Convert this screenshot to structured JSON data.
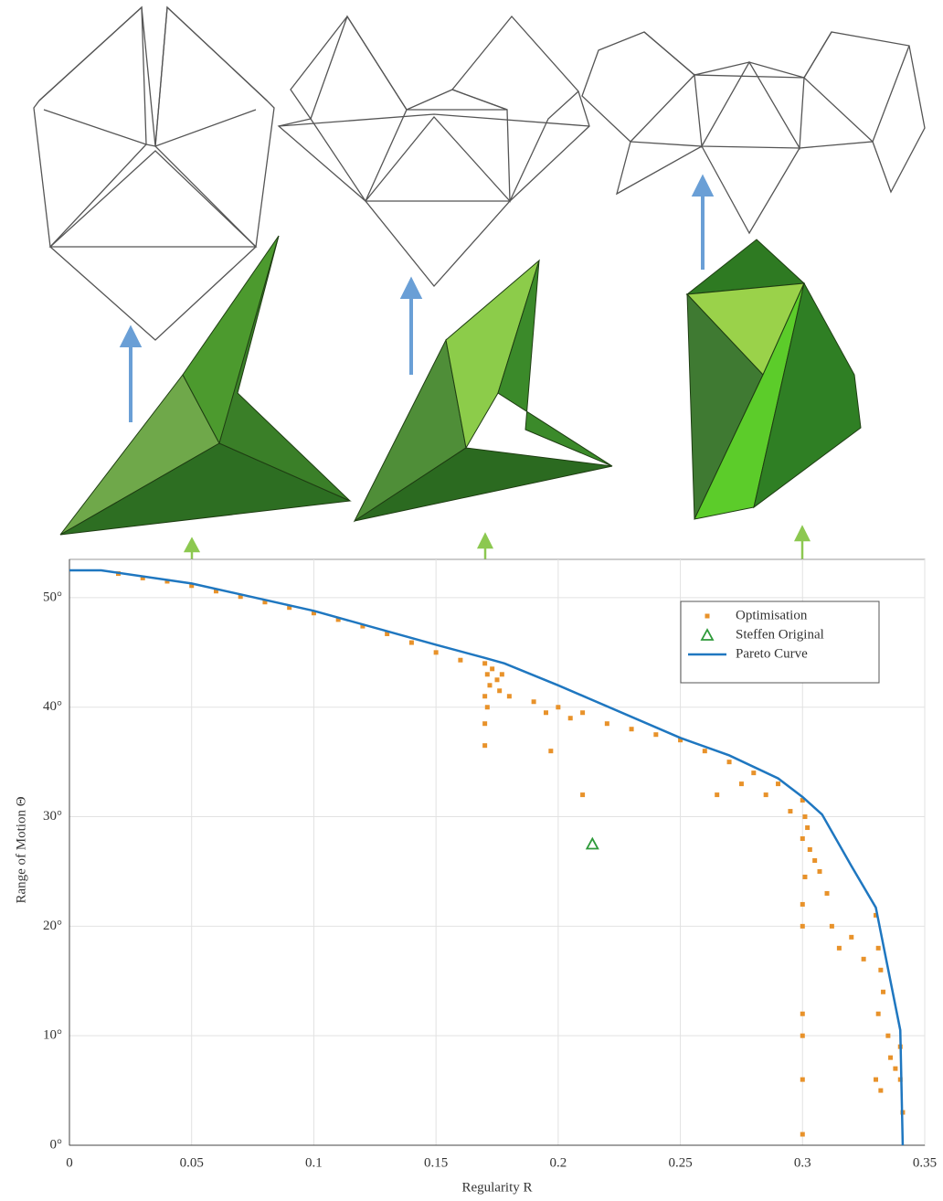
{
  "chart_data": {
    "type": "scatter",
    "x_label": "Regularity R",
    "y_label": "Range of Motion Θ",
    "xlim": [
      0,
      0.35
    ],
    "ylim": [
      0,
      53.5
    ],
    "xticks": [
      0,
      0.05,
      0.1,
      0.15,
      0.2,
      0.25,
      0.3,
      0.35
    ],
    "yticks": [
      {
        "value": 0,
        "label": "0°"
      },
      {
        "value": 10,
        "label": "10°"
      },
      {
        "value": 20,
        "label": "20°"
      },
      {
        "value": 30,
        "label": "30°"
      },
      {
        "value": 40,
        "label": "40°"
      },
      {
        "value": 50,
        "label": "50°"
      }
    ],
    "grid": true,
    "legend": "upper right",
    "series": [
      {
        "name": "Optimisation",
        "type": "scatter",
        "marker": "x",
        "color": "#e8922a",
        "x": [
          0.02,
          0.03,
          0.04,
          0.05,
          0.06,
          0.07,
          0.08,
          0.09,
          0.1,
          0.11,
          0.12,
          0.13,
          0.14,
          0.15,
          0.16,
          0.17,
          0.171,
          0.172,
          0.17,
          0.171,
          0.17,
          0.17,
          0.173,
          0.175,
          0.176,
          0.177,
          0.18,
          0.19,
          0.195,
          0.2,
          0.205,
          0.21,
          0.197,
          0.22,
          0.23,
          0.24,
          0.25,
          0.26,
          0.27,
          0.28,
          0.285,
          0.29,
          0.295,
          0.265,
          0.275,
          0.21,
          0.3,
          0.301,
          0.302,
          0.3,
          0.303,
          0.305,
          0.301,
          0.307,
          0.31,
          0.3,
          0.3,
          0.312,
          0.315,
          0.3,
          0.3,
          0.3,
          0.3,
          0.32,
          0.325,
          0.33,
          0.331,
          0.332,
          0.333,
          0.331,
          0.335,
          0.33,
          0.332,
          0.336,
          0.338,
          0.34,
          0.34,
          0.341
        ],
        "values": [
          52.2,
          51.8,
          51.5,
          51.1,
          50.6,
          50.1,
          49.6,
          49.1,
          48.6,
          48,
          47.4,
          46.7,
          45.9,
          45,
          44.3,
          44,
          43,
          42,
          41,
          40,
          38.5,
          36.5,
          43.5,
          42.5,
          41.5,
          43,
          41,
          40.5,
          39.5,
          40,
          39,
          39.5,
          36,
          38.5,
          38,
          37.5,
          37,
          36,
          35,
          34,
          32,
          33,
          30.5,
          32,
          33,
          32,
          31.5,
          30,
          29,
          28,
          27,
          26,
          24.5,
          25,
          23,
          22,
          20,
          20,
          18,
          12,
          10,
          6,
          1,
          19,
          17,
          21,
          18,
          16,
          14,
          12,
          10,
          6,
          5,
          8,
          7,
          9,
          6,
          3
        ]
      },
      {
        "name": "Steffen Original",
        "type": "scatter",
        "marker": "triangle",
        "color": "#2e9a3a",
        "x": [
          0.214
        ],
        "values": [
          27.5
        ]
      },
      {
        "name": "Pareto Curve",
        "type": "line",
        "color": "#1f77c0",
        "x": [
          0,
          0.013,
          0.05,
          0.1,
          0.15,
          0.17,
          0.178,
          0.2,
          0.25,
          0.27,
          0.29,
          0.3,
          0.308,
          0.32,
          0.33,
          0.34,
          0.341
        ],
        "values": [
          52.5,
          52.5,
          51.3,
          48.8,
          45.7,
          44.5,
          44,
          42,
          37.2,
          35.6,
          33.5,
          31.8,
          30.2,
          25.5,
          21.7,
          10.5,
          0
        ]
      }
    ]
  }
}
